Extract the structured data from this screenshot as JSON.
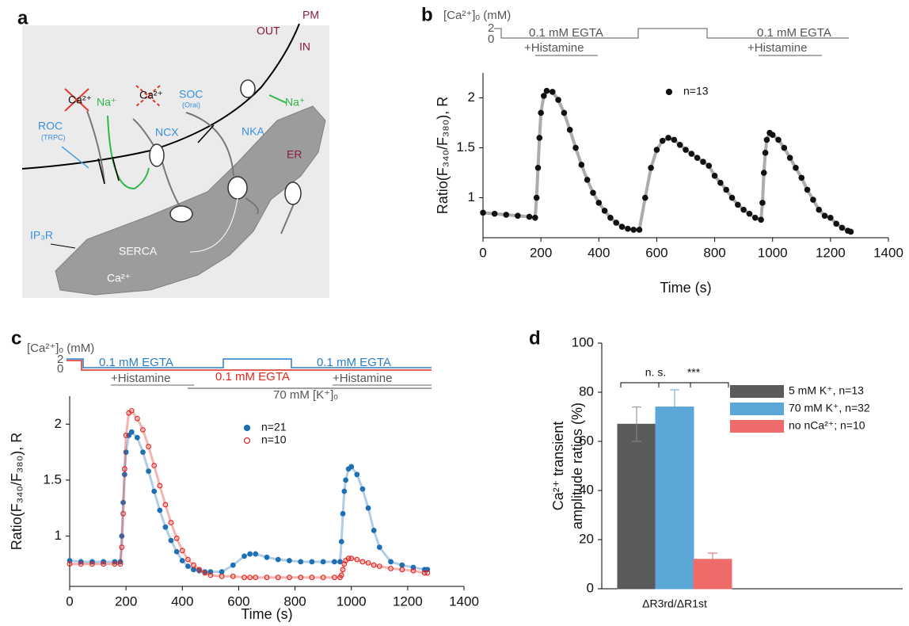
{
  "panel_labels": [
    "a",
    "b",
    "c",
    "d"
  ],
  "diagram": {
    "labels": [
      "PM",
      "OUT",
      "IN",
      "ROC",
      "(TRPC)",
      "Ca²⁺",
      "Na⁺",
      "Ca²⁺",
      "SOC",
      "(Orai)",
      "NKA",
      "Na⁺",
      "NCX",
      "ER",
      "IP₃R",
      "SERCA",
      "Ca²⁺"
    ]
  },
  "chart_data": [
    {
      "type": "scatter",
      "protocol": {
        "label": "[Ca²⁺]ₒ (mM)",
        "levels": [
          2,
          0
        ],
        "texts": [
          "0.1 mM EGTA",
          "+Histamine",
          "0.1 mM EGTA",
          "+Histamine"
        ]
      },
      "xlabel": "Time (s)",
      "ylabel": "Ratio(F₃₄₀/F₃₈₀), R",
      "xlim": [
        0,
        1400
      ],
      "xticks": [
        0,
        200,
        400,
        600,
        800,
        1000,
        1200,
        1400
      ],
      "ylim": [
        0.6,
        2.25
      ],
      "yticks": [
        1,
        1.5,
        2
      ],
      "x": [
        0,
        40,
        80,
        120,
        160,
        180,
        185,
        190,
        195,
        200,
        210,
        220,
        240,
        260,
        280,
        300,
        320,
        340,
        360,
        380,
        400,
        420,
        440,
        460,
        480,
        500,
        520,
        540,
        560,
        580,
        600,
        620,
        640,
        660,
        680,
        700,
        720,
        740,
        760,
        780,
        800,
        820,
        840,
        860,
        880,
        900,
        920,
        940,
        960,
        965,
        970,
        975,
        980,
        990,
        1000,
        1020,
        1040,
        1060,
        1080,
        1100,
        1120,
        1140,
        1160,
        1180,
        1200,
        1220,
        1240,
        1260,
        1270
      ],
      "series": [
        {
          "name": "n=13",
          "color": "#111111",
          "hollow": false,
          "values": [
            0.85,
            0.84,
            0.83,
            0.82,
            0.81,
            0.8,
            1.0,
            1.3,
            1.6,
            1.85,
            2.02,
            2.07,
            2.06,
            1.98,
            1.85,
            1.68,
            1.5,
            1.33,
            1.18,
            1.05,
            0.95,
            0.87,
            0.8,
            0.75,
            0.71,
            0.69,
            0.68,
            0.68,
            1.0,
            1.3,
            1.48,
            1.57,
            1.6,
            1.58,
            1.53,
            1.48,
            1.44,
            1.4,
            1.36,
            1.32,
            1.22,
            1.15,
            1.08,
            1.0,
            0.93,
            0.88,
            0.84,
            0.8,
            0.78,
            0.95,
            1.25,
            1.45,
            1.58,
            1.65,
            1.63,
            1.58,
            1.5,
            1.4,
            1.3,
            1.2,
            1.08,
            0.98,
            0.88,
            0.82,
            0.8,
            0.74,
            0.7,
            0.67,
            0.66
          ]
        }
      ]
    },
    {
      "type": "scatter",
      "protocol": {
        "label": "[Ca²⁺]ₒ (mM)",
        "levels": [
          2,
          0
        ],
        "texts": [
          "0.1 mM EGTA",
          "0.1 mM EGTA",
          "+Histamine",
          "0.1 mM EGTA",
          "+Histamine",
          "70 mM [K⁺]ₒ"
        ]
      },
      "xlabel": "Time (s)",
      "ylabel": "Ratio(F₃₄₀/F₃₈₀), R",
      "xlim": [
        0,
        1400
      ],
      "xticks": [
        0,
        200,
        400,
        600,
        800,
        1000,
        1200,
        1400
      ],
      "ylim": [
        0.55,
        2.25
      ],
      "yticks": [
        1,
        1.5,
        2
      ],
      "x": [
        0,
        40,
        80,
        120,
        160,
        180,
        185,
        190,
        195,
        200,
        210,
        220,
        240,
        260,
        280,
        300,
        320,
        340,
        360,
        380,
        400,
        420,
        440,
        460,
        480,
        500,
        540,
        580,
        620,
        640,
        660,
        700,
        740,
        780,
        820,
        860,
        900,
        940,
        960,
        965,
        970,
        975,
        980,
        990,
        1000,
        1020,
        1040,
        1060,
        1080,
        1100,
        1140,
        1180,
        1220,
        1260,
        1270
      ],
      "series": [
        {
          "name": "n=21",
          "color": "#1f6fb4",
          "hollow": false,
          "values": [
            0.78,
            0.77,
            0.77,
            0.77,
            0.77,
            0.77,
            1.0,
            1.3,
            1.55,
            1.75,
            1.9,
            1.93,
            1.88,
            1.75,
            1.58,
            1.4,
            1.23,
            1.08,
            0.96,
            0.86,
            0.78,
            0.73,
            0.7,
            0.69,
            0.68,
            0.68,
            0.68,
            0.74,
            0.82,
            0.84,
            0.84,
            0.81,
            0.79,
            0.78,
            0.77,
            0.77,
            0.77,
            0.77,
            0.77,
            0.95,
            1.2,
            1.4,
            1.5,
            1.6,
            1.62,
            1.55,
            1.42,
            1.25,
            1.05,
            0.9,
            0.77,
            0.74,
            0.72,
            0.7,
            0.7
          ]
        },
        {
          "name": "n=10",
          "color": "#e3261f",
          "hollow": true,
          "values": [
            0.75,
            0.75,
            0.75,
            0.75,
            0.75,
            0.75,
            0.9,
            1.2,
            1.6,
            1.9,
            2.1,
            2.12,
            2.05,
            1.95,
            1.8,
            1.63,
            1.45,
            1.28,
            1.12,
            0.98,
            0.87,
            0.79,
            0.74,
            0.7,
            0.67,
            0.65,
            0.64,
            0.64,
            0.63,
            0.63,
            0.63,
            0.63,
            0.63,
            0.63,
            0.63,
            0.63,
            0.63,
            0.63,
            0.63,
            0.65,
            0.7,
            0.75,
            0.78,
            0.8,
            0.8,
            0.79,
            0.77,
            0.76,
            0.74,
            0.73,
            0.71,
            0.7,
            0.69,
            0.67,
            0.67
          ]
        }
      ]
    },
    {
      "type": "bar",
      "ylabel": [
        "Ca²⁺ transient",
        "amplitude ratios (%)"
      ],
      "ylim": [
        0,
        100
      ],
      "yticks": [
        0,
        20,
        40,
        60,
        80,
        100
      ],
      "categories": [
        "ΔR3rd/ΔR1st"
      ],
      "annotations": [
        "n. s.",
        "***"
      ],
      "series": [
        {
          "name": "5 mM K⁺, n=13",
          "color": "#5a5a5a",
          "values": [
            67
          ],
          "errors": [
            7
          ]
        },
        {
          "name": "70 mM K⁺, n=32",
          "color": "#5aa7d8",
          "values": [
            74
          ],
          "errors": [
            7
          ]
        },
        {
          "name": "no nCa²⁺; n=10",
          "color": "#ee6b69",
          "values": [
            12
          ],
          "errors": [
            2.5
          ]
        }
      ]
    }
  ]
}
